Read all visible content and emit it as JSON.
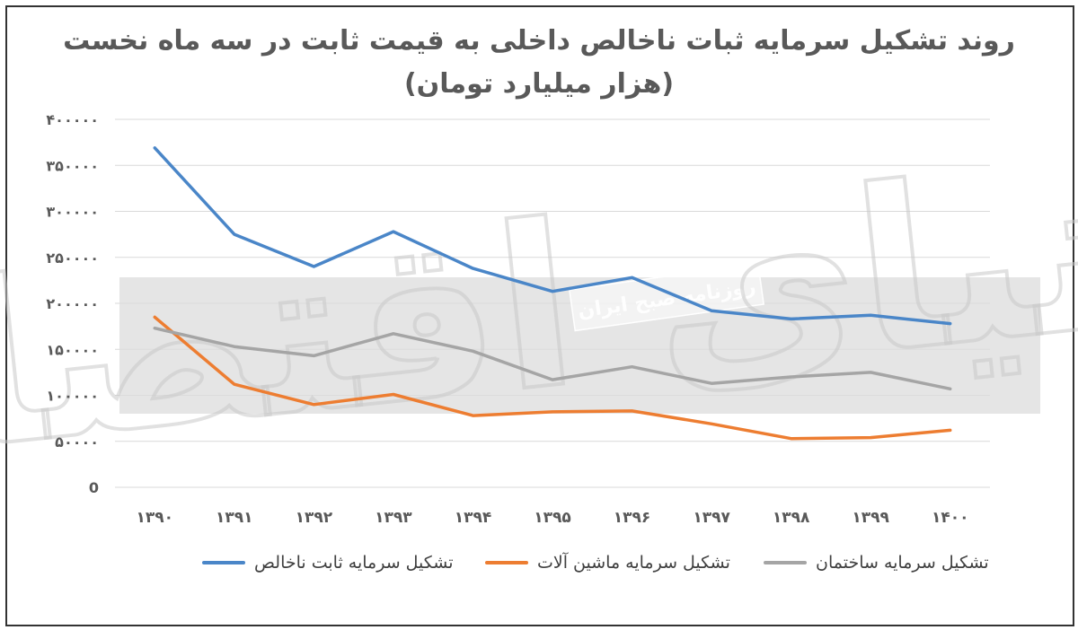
{
  "chart_data": {
    "type": "line",
    "title": "روند تشکیل سرمایه ثبات ناخالص داخلی به قیمت ثابت در سه ماه نخست",
    "subtitle": "(هزار میلیارد تومان)",
    "categories": [
      "۱۳۹۰",
      "۱۳۹۱",
      "۱۳۹۲",
      "۱۳۹۳",
      "۱۳۹۴",
      "۱۳۹۵",
      "۱۳۹۶",
      "۱۳۹۷",
      "۱۳۹۸",
      "۱۳۹۹",
      "۱۴۰۰"
    ],
    "ylim": [
      0,
      400000
    ],
    "yticks": [
      0,
      50000,
      100000,
      150000,
      200000,
      250000,
      300000,
      350000,
      400000
    ],
    "ytick_labels": [
      "0",
      "۵۰۰۰۰",
      "۱۰۰۰۰۰",
      "۱۵۰۰۰۰",
      "۲۰۰۰۰۰",
      "۲۵۰۰۰۰",
      "۳۰۰۰۰۰",
      "۳۵۰۰۰۰",
      "۴۰۰۰۰۰"
    ],
    "grid": true,
    "legend_position": "bottom",
    "series": [
      {
        "name": "تشکیل سرمایه ثابت ناخالص",
        "color": "#4a86c8",
        "values": [
          369000,
          275000,
          240000,
          278000,
          238000,
          213000,
          228000,
          192000,
          183000,
          187000,
          178000
        ]
      },
      {
        "name": "تشکیل سرمایه ماشین آلات",
        "color": "#ed7d31",
        "values": [
          185000,
          112000,
          90000,
          101000,
          78000,
          82000,
          83000,
          69000,
          53000,
          54000,
          62000
        ]
      },
      {
        "name": "تشکیل سرمایه ساختمان",
        "color": "#a5a5a5",
        "values": [
          173000,
          153000,
          143000,
          167000,
          148000,
          117000,
          131000,
          113000,
          120000,
          125000,
          107000
        ]
      }
    ],
    "watermark_band_text": "روزنامه صبح ایران",
    "watermark_logo_text": "دنیای اقتصاد"
  }
}
